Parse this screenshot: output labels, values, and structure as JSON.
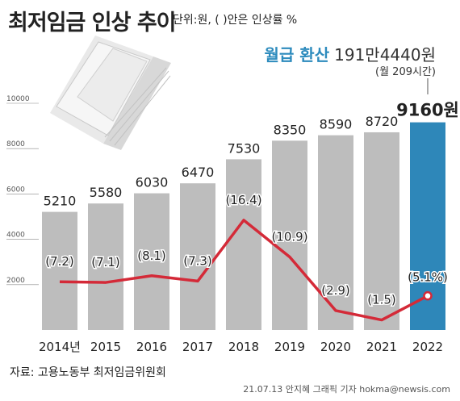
{
  "header": {
    "title": "최저임금 인상 추이",
    "unit_note": "단위:원, ( )안은 인상률 %",
    "monthly_label": "월급 환산",
    "monthly_value": "191만4440원",
    "hours_note": "(월 209시간)"
  },
  "footer": {
    "source": "자료: 고용노동부 최저임금위원회",
    "credit": "21.07.13 안지혜 그래픽 기자 hokma@newsis.com"
  },
  "colors": {
    "bar": "#bdbdbd",
    "highlight_bar": "#2e87b9",
    "line": "#d42a38",
    "accent_text": "#2d8bbd"
  },
  "chart_data": {
    "type": "bar",
    "title": "최저임금 인상 추이",
    "categories": [
      "2014년",
      "2015",
      "2016",
      "2017",
      "2018",
      "2019",
      "2020",
      "2021",
      "2022"
    ],
    "series": [
      {
        "values": [
          5210,
          5580,
          6030,
          6470,
          7530,
          8350,
          8590,
          8720,
          9160
        ]
      },
      {
        "type": "line",
        "values": [
          7.2,
          7.1,
          8.1,
          7.3,
          16.4,
          10.9,
          2.9,
          1.5,
          5.1
        ]
      }
    ],
    "bar_labels": [
      "5210",
      "5580",
      "6030",
      "6470",
      "7530",
      "8350",
      "8590",
      "8720",
      "9160원"
    ],
    "rate_labels": [
      "(7.2)",
      "(7.1)",
      "(8.1)",
      "(7.3)",
      "(16.4)",
      "(10.9)",
      "(2.9)",
      "(1.5)",
      "(5.1%)"
    ],
    "yticks": [
      "2000",
      "4000",
      "6000",
      "8000",
      "10000"
    ],
    "ylim": [
      0,
      10000
    ],
    "line_ylim": [
      0,
      20
    ],
    "highlight_index": 8,
    "grid": false,
    "legend": "none"
  }
}
